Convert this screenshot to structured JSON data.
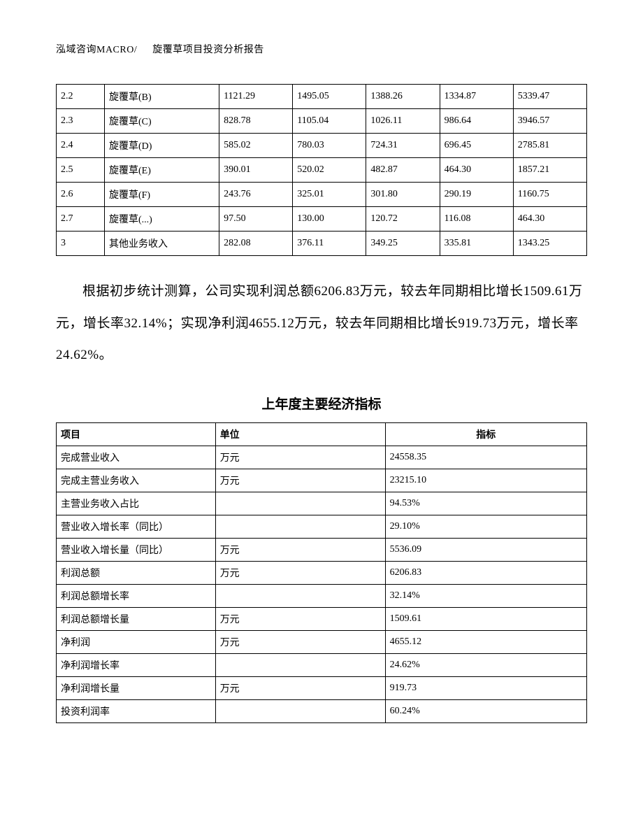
{
  "header": {
    "left": "泓域咨询MACRO/",
    "right": "旋覆草项目投资分析报告"
  },
  "table1": {
    "rows": [
      {
        "c0": "2.2",
        "c1": "旋覆草(B)",
        "c2": "1121.29",
        "c3": "1495.05",
        "c4": "1388.26",
        "c5": "1334.87",
        "c6": "5339.47"
      },
      {
        "c0": "2.3",
        "c1": "旋覆草(C)",
        "c2": "828.78",
        "c3": "1105.04",
        "c4": "1026.11",
        "c5": "986.64",
        "c6": "3946.57"
      },
      {
        "c0": "2.4",
        "c1": "旋覆草(D)",
        "c2": "585.02",
        "c3": "780.03",
        "c4": "724.31",
        "c5": "696.45",
        "c6": "2785.81"
      },
      {
        "c0": "2.5",
        "c1": "旋覆草(E)",
        "c2": "390.01",
        "c3": "520.02",
        "c4": "482.87",
        "c5": "464.30",
        "c6": "1857.21"
      },
      {
        "c0": "2.6",
        "c1": "旋覆草(F)",
        "c2": "243.76",
        "c3": "325.01",
        "c4": "301.80",
        "c5": "290.19",
        "c6": "1160.75"
      },
      {
        "c0": "2.7",
        "c1": "旋覆草(...)",
        "c2": "97.50",
        "c3": "130.00",
        "c4": "120.72",
        "c5": "116.08",
        "c6": "464.30"
      },
      {
        "c0": "3",
        "c1": "其他业务收入",
        "c2": "282.08",
        "c3": "376.11",
        "c4": "349.25",
        "c5": "335.81",
        "c6": "1343.25"
      }
    ]
  },
  "paragraph": "根据初步统计测算，公司实现利润总额6206.83万元，较去年同期相比增长1509.61万元，增长率32.14%；实现净利润4655.12万元，较去年同期相比增长919.73万元，增长率24.62%。",
  "subtitle": "上年度主要经济指标",
  "table2": {
    "header": {
      "item": "项目",
      "unit": "单位",
      "value": "指标"
    },
    "rows": [
      {
        "item": "完成营业收入",
        "unit": "万元",
        "value": "24558.35"
      },
      {
        "item": "完成主营业务收入",
        "unit": "万元",
        "value": "23215.10"
      },
      {
        "item": "主营业务收入占比",
        "unit": "",
        "value": "94.53%"
      },
      {
        "item": "营业收入增长率（同比）",
        "unit": "",
        "value": "29.10%"
      },
      {
        "item": "营业收入增长量（同比）",
        "unit": "万元",
        "value": "5536.09"
      },
      {
        "item": "利润总额",
        "unit": "万元",
        "value": "6206.83"
      },
      {
        "item": "利润总额增长率",
        "unit": "",
        "value": "32.14%"
      },
      {
        "item": "利润总额增长量",
        "unit": "万元",
        "value": "1509.61"
      },
      {
        "item": "净利润",
        "unit": "万元",
        "value": "4655.12"
      },
      {
        "item": "净利润增长率",
        "unit": "",
        "value": "24.62%"
      },
      {
        "item": "净利润增长量",
        "unit": "万元",
        "value": "919.73"
      },
      {
        "item": "投资利润率",
        "unit": "",
        "value": "60.24%"
      }
    ]
  }
}
